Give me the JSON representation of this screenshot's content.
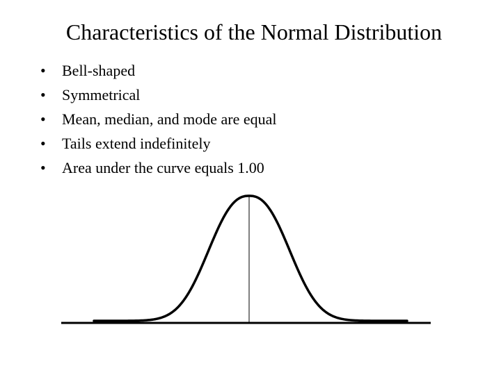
{
  "slide": {
    "title": "Characteristics of the Normal Distribution",
    "bullet_symbol": "•",
    "bullets": [
      "Bell-shaped",
      "Symmetrical",
      "Mean, median, and mode are equal",
      "Tails extend indefinitely",
      "Area under the curve equals 1.00"
    ]
  },
  "figure": {
    "type": "normal-curve",
    "line_color": "#000000"
  }
}
